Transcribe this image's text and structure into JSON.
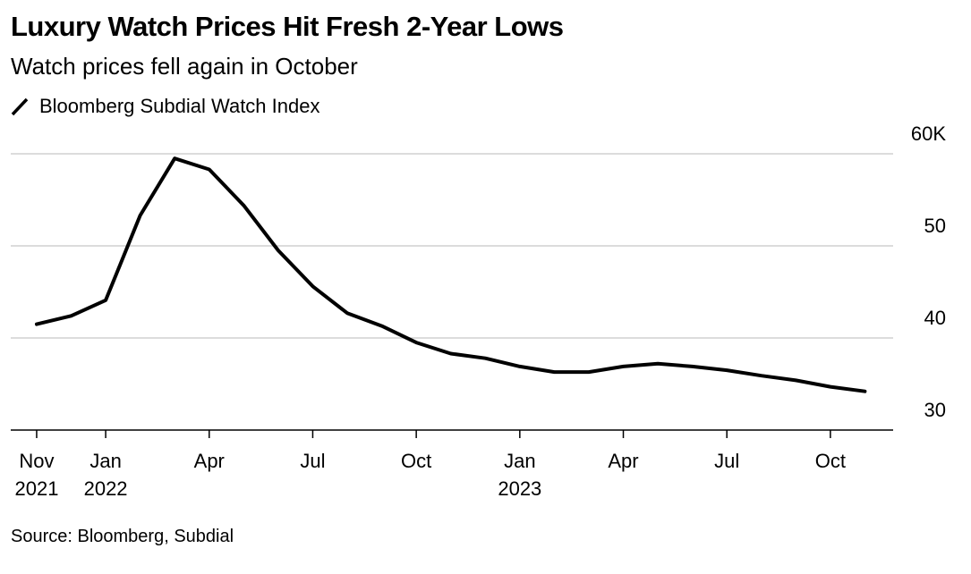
{
  "chart_data": {
    "type": "line",
    "title": "Luxury Watch Prices Hit Fresh 2-Year Lows",
    "subtitle": "Watch prices fell again in October",
    "source": "Source: Bloomberg, Subdial",
    "x": [
      "2021-11",
      "2021-12",
      "2022-01",
      "2022-02",
      "2022-03",
      "2022-04",
      "2022-05",
      "2022-06",
      "2022-07",
      "2022-08",
      "2022-09",
      "2022-10",
      "2022-11",
      "2022-12",
      "2023-01",
      "2023-02",
      "2023-03",
      "2023-04",
      "2023-05",
      "2023-06",
      "2023-07",
      "2023-08",
      "2023-09",
      "2023-10",
      "2023-11"
    ],
    "series": [
      {
        "name": "Bloomberg Subdial Watch Index",
        "color": "#000000",
        "values": [
          41.5,
          42.4,
          44.1,
          53.3,
          59.5,
          58.3,
          54.4,
          49.5,
          45.6,
          42.7,
          41.3,
          39.5,
          38.3,
          37.8,
          36.9,
          36.3,
          36.3,
          36.9,
          37.2,
          36.9,
          36.5,
          35.9,
          35.4,
          34.7,
          34.2
        ]
      }
    ],
    "xlim": [
      "2021-10",
      "2023-12"
    ],
    "xticks": [
      {
        "value": "2021-11",
        "label": [
          "Nov",
          "2021"
        ]
      },
      {
        "value": "2022-01",
        "label": [
          "Jan",
          "2022"
        ]
      },
      {
        "value": "2022-04",
        "label": [
          "Apr"
        ]
      },
      {
        "value": "2022-07",
        "label": [
          "Jul"
        ]
      },
      {
        "value": "2022-10",
        "label": [
          "Oct"
        ]
      },
      {
        "value": "2023-01",
        "label": [
          "Jan",
          "2023"
        ]
      },
      {
        "value": "2023-04",
        "label": [
          "Apr"
        ]
      },
      {
        "value": "2023-07",
        "label": [
          "Jul"
        ]
      },
      {
        "value": "2023-10",
        "label": [
          "Oct"
        ]
      }
    ],
    "ylim": [
      30,
      60
    ],
    "yticks": [
      30,
      40,
      50,
      {
        "value": 60,
        "label": "60K"
      }
    ],
    "grid": true
  }
}
